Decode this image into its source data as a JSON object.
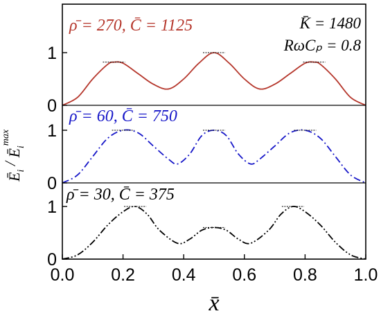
{
  "chart_data": {
    "type": "line",
    "xlabel": "x̄",
    "ylabel_parts": {
      "main": "Ē",
      "sub": "i",
      "slash": " / ",
      "main2": "Ē",
      "sub2": "i",
      "sup2": "max"
    },
    "xlim": [
      0,
      1
    ],
    "xticks": [
      "0.0",
      "0.2",
      "0.4",
      "0.6",
      "0.8",
      "1.0"
    ],
    "xtick_values": [
      0,
      0.2,
      0.4,
      0.6,
      0.8,
      1.0
    ],
    "annotation_top_right": [
      "K̄ = 1480",
      "RωCₚ = 0.8"
    ],
    "panels": [
      {
        "label": "ρ̄ = 270,  C̄ = 1125",
        "color": "#b5362b",
        "dash": "solid",
        "ylim": [
          0,
          1.1
        ],
        "yticks": [
          "0",
          "1"
        ],
        "ytick_values": [
          0,
          1
        ],
        "x": [
          0,
          0.05,
          0.1,
          0.15,
          0.17,
          0.2,
          0.25,
          0.3,
          0.35,
          0.4,
          0.45,
          0.5,
          0.55,
          0.6,
          0.65,
          0.7,
          0.75,
          0.8,
          0.83,
          0.85,
          0.9,
          0.95,
          1.0
        ],
        "y": [
          0,
          0.15,
          0.5,
          0.78,
          0.82,
          0.8,
          0.6,
          0.4,
          0.31,
          0.5,
          0.8,
          1.0,
          0.8,
          0.5,
          0.31,
          0.4,
          0.6,
          0.8,
          0.82,
          0.78,
          0.5,
          0.15,
          0
        ],
        "peak_markers": [
          [
            0.17,
            0.82
          ],
          [
            0.5,
            1.0
          ],
          [
            0.83,
            0.82
          ]
        ]
      },
      {
        "label": "ρ̄ = 60,  C̄ = 750",
        "color": "#1515c8",
        "dash": "dashdot",
        "ylim": [
          0,
          1.1
        ],
        "yticks": [
          "0",
          "1"
        ],
        "ytick_values": [
          0,
          1
        ],
        "x": [
          0,
          0.05,
          0.1,
          0.15,
          0.2,
          0.25,
          0.3,
          0.35,
          0.38,
          0.42,
          0.46,
          0.5,
          0.54,
          0.58,
          0.62,
          0.65,
          0.7,
          0.75,
          0.8,
          0.85,
          0.9,
          0.95,
          1.0
        ],
        "y": [
          0,
          0.15,
          0.5,
          0.85,
          1.0,
          0.95,
          0.7,
          0.45,
          0.36,
          0.55,
          0.9,
          1.0,
          0.9,
          0.55,
          0.36,
          0.45,
          0.7,
          0.95,
          1.0,
          0.85,
          0.5,
          0.15,
          0
        ],
        "peak_markers": [
          [
            0.2,
            1.0
          ],
          [
            0.5,
            1.0
          ],
          [
            0.8,
            1.0
          ]
        ]
      },
      {
        "label": "ρ̄ = 30,  C̄ = 375",
        "color": "#000000",
        "dash": "dashdotdot",
        "ylim": [
          0,
          1.1
        ],
        "yticks": [
          "0",
          "1"
        ],
        "ytick_values": [
          0,
          1
        ],
        "x": [
          0,
          0.05,
          0.1,
          0.15,
          0.2,
          0.24,
          0.28,
          0.32,
          0.38,
          0.42,
          0.46,
          0.5,
          0.54,
          0.58,
          0.62,
          0.68,
          0.72,
          0.76,
          0.8,
          0.85,
          0.9,
          0.95,
          1.0
        ],
        "y": [
          0,
          0.08,
          0.32,
          0.65,
          0.9,
          1.0,
          0.85,
          0.55,
          0.3,
          0.38,
          0.55,
          0.6,
          0.55,
          0.38,
          0.3,
          0.55,
          0.85,
          1.0,
          0.9,
          0.65,
          0.32,
          0.08,
          0
        ],
        "peak_markers": [
          [
            0.24,
            1.0
          ],
          [
            0.5,
            0.6
          ],
          [
            0.76,
            1.0
          ]
        ]
      }
    ]
  }
}
